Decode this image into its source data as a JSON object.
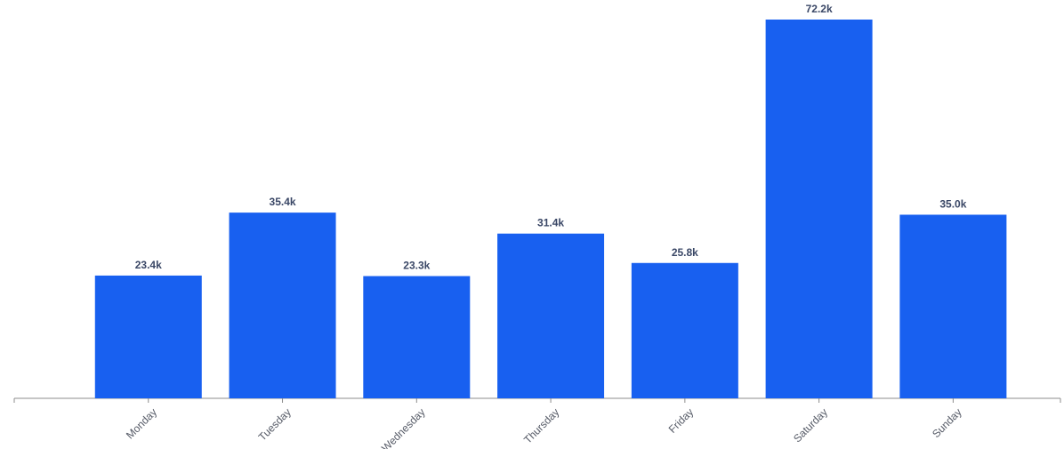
{
  "chart_data": {
    "type": "bar",
    "categories": [
      "Monday",
      "Tuesday",
      "Wednesday",
      "Thursday",
      "Friday",
      "Saturday",
      "Sunday"
    ],
    "values": [
      23.4,
      35.4,
      23.3,
      31.4,
      25.8,
      72.2,
      35.0
    ],
    "data_labels": [
      "23.4k",
      "35.4k",
      "23.3k",
      "31.4k",
      "25.8k",
      "72.2k",
      "35.0k"
    ],
    "value_unit": "thousands",
    "title": "",
    "xlabel": "",
    "ylabel": "",
    "ylim": [
      0,
      72.2
    ],
    "grid": false,
    "legend": "none",
    "y_axis_visible": false,
    "x_tick_rotation_deg": -45,
    "colors": {
      "bar": "#1860f0",
      "data_label": "#3a4766",
      "tick_label": "#555a66",
      "axis": "#8c8c8c"
    }
  }
}
